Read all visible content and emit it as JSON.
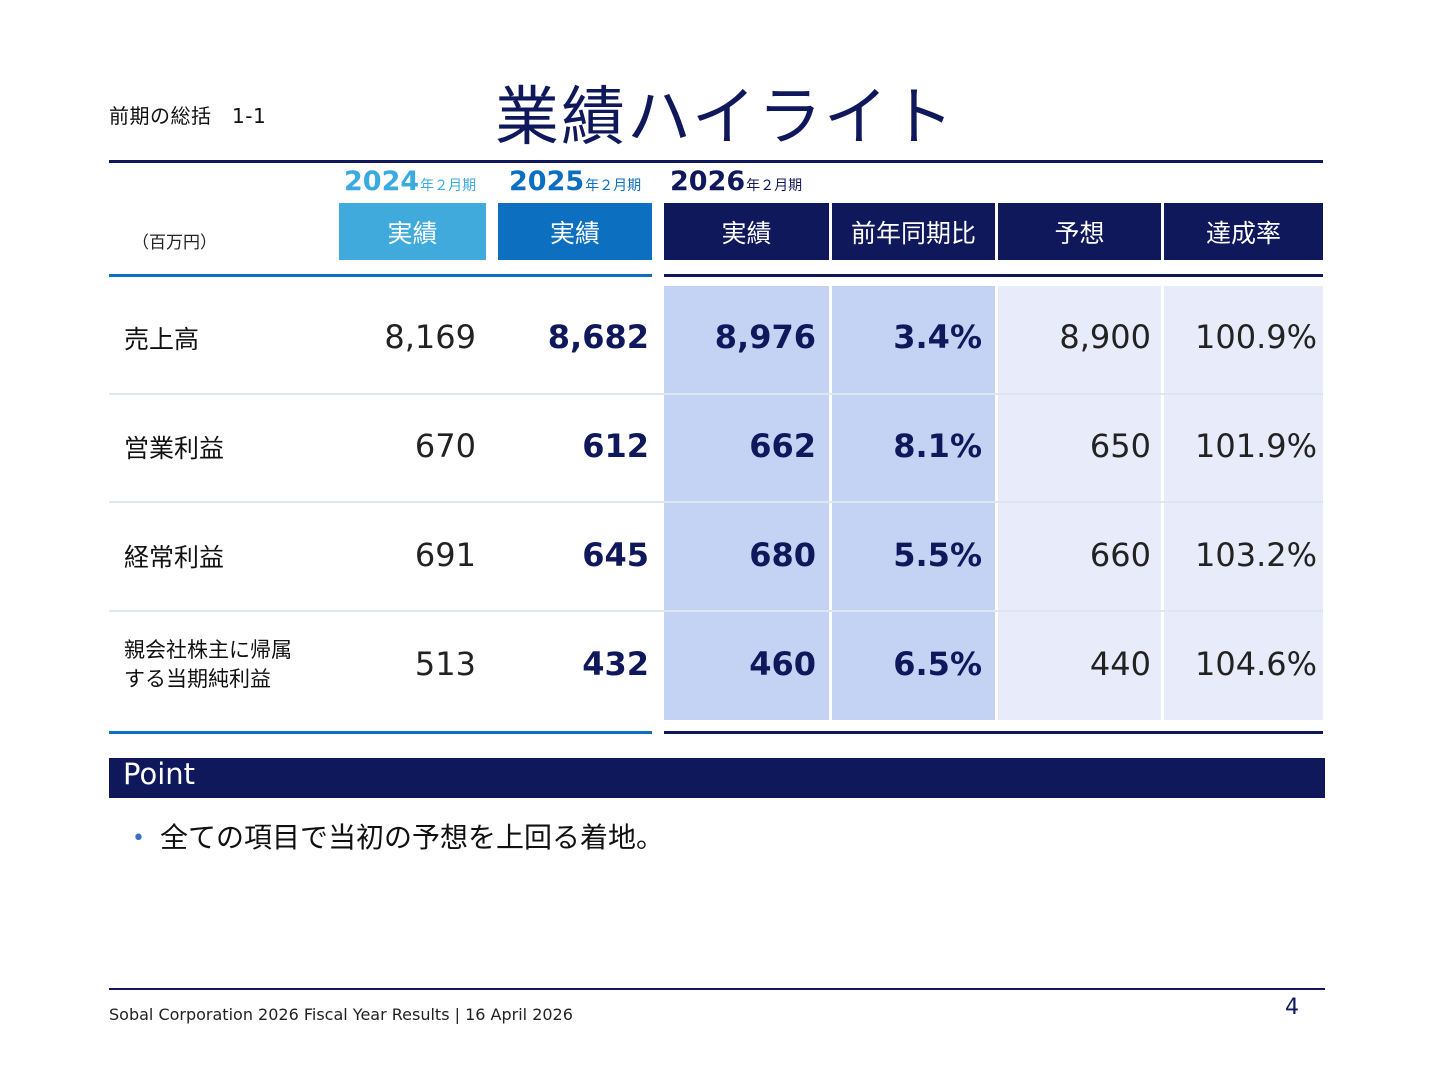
{
  "header": {
    "section": "前期の総括　1-1",
    "title": "業績ハイライト"
  },
  "table": {
    "unit": "（百万円）",
    "years": [
      {
        "year": "2024",
        "suffix": "年２月期"
      },
      {
        "year": "2025",
        "suffix": "年２月期"
      },
      {
        "year": "2026",
        "suffix": "年２月期"
      }
    ],
    "columns": [
      "実績",
      "実績",
      "実績",
      "前年同期比",
      "予想",
      "達成率"
    ],
    "rows": [
      {
        "label": "売上高",
        "v2024": "8,169",
        "v2025": "8,682",
        "actual": "8,976",
        "yoy": "3.4%",
        "forecast": "8,900",
        "rate": "100.9%"
      },
      {
        "label": "営業利益",
        "v2024": "670",
        "v2025": "612",
        "actual": "662",
        "yoy": "8.1%",
        "forecast": "650",
        "rate": "101.9%"
      },
      {
        "label": "経常利益",
        "v2024": "691",
        "v2025": "645",
        "actual": "680",
        "yoy": "5.5%",
        "forecast": "660",
        "rate": "103.2%"
      },
      {
        "label_line1": "親会社株主に帰属",
        "label_line2": "する当期純利益",
        "v2024": "513",
        "v2025": "432",
        "actual": "460",
        "yoy": "6.5%",
        "forecast": "440",
        "rate": "104.6%"
      }
    ],
    "colors": {
      "y2024": "#41aadd",
      "y2025": "#0d6fc0",
      "y2026": "#10185c",
      "shade_strong": "#c4d3f3",
      "shade_light": "#e8ebf9"
    }
  },
  "point": {
    "heading": "Point",
    "bullet": "•",
    "text": "全ての項目で当初の予想を上回る着地。"
  },
  "footer": {
    "text": "Sobal Corporation 2026 Fiscal Year Results  |  16 April 2026",
    "page": "4"
  }
}
